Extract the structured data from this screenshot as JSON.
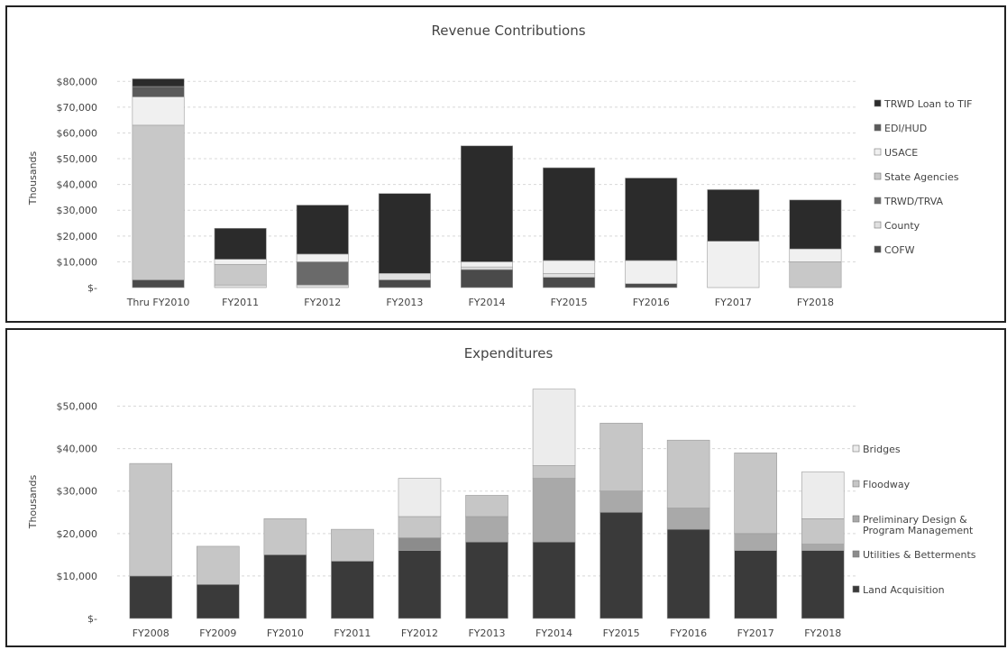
{
  "chart_data": [
    {
      "type": "bar",
      "stacked": true,
      "title": "Revenue Contributions",
      "ylabel": "Thousands",
      "ylim": [
        0,
        85000
      ],
      "yticks": [
        0,
        10000,
        20000,
        30000,
        40000,
        50000,
        60000,
        70000,
        80000
      ],
      "ytick_labels": [
        "$-",
        "$10,000",
        "$20,000",
        "$30,000",
        "$40,000",
        "$50,000",
        "$60,000",
        "$70,000",
        "$80,000"
      ],
      "grid": true,
      "legend_position": "right",
      "categories": [
        "Thru FY2010",
        "FY2011",
        "FY2012",
        "FY2013",
        "FY2014",
        "FY2015",
        "FY2016",
        "FY2017",
        "FY2018"
      ],
      "series": [
        {
          "name": "COFW",
          "color": "#4a4a4a",
          "values": [
            3000,
            0,
            0,
            3000,
            7000,
            4000,
            1500,
            0,
            0
          ]
        },
        {
          "name": "County",
          "color": "#e0e0e0",
          "values": [
            0,
            1000,
            1000,
            2500,
            1000,
            1500,
            0,
            0,
            0
          ]
        },
        {
          "name": "TRWD/TRVA",
          "color": "#6a6a6a",
          "values": [
            0,
            0,
            9000,
            0,
            0,
            0,
            0,
            0,
            0
          ]
        },
        {
          "name": "State Agencies",
          "color": "#c8c8c8",
          "values": [
            60000,
            8000,
            0,
            0,
            0,
            0,
            0,
            0,
            10000
          ]
        },
        {
          "name": "USACE",
          "color": "#f0f0f0",
          "values": [
            11000,
            2000,
            3000,
            0,
            2000,
            5000,
            9000,
            18000,
            5000
          ]
        },
        {
          "name": "EDI/HUD",
          "color": "#5a5a5a",
          "values": [
            4000,
            0,
            0,
            0,
            0,
            0,
            0,
            0,
            0
          ]
        },
        {
          "name": "TRWD Loan to TIF",
          "color": "#2b2b2b",
          "values": [
            3000,
            12000,
            19000,
            31000,
            45000,
            36000,
            32000,
            20000,
            19000
          ]
        }
      ]
    },
    {
      "type": "bar",
      "stacked": true,
      "title": "Expenditures",
      "ylabel": "Thousands",
      "ylim": [
        0,
        55000
      ],
      "yticks": [
        0,
        10000,
        20000,
        30000,
        40000,
        50000
      ],
      "ytick_labels": [
        "$-",
        "$10,000",
        "$20,000",
        "$30,000",
        "$40,000",
        "$50,000"
      ],
      "grid": true,
      "legend_position": "right",
      "categories": [
        "FY2008",
        "FY2009",
        "FY2010",
        "FY2011",
        "FY2012",
        "FY2013",
        "FY2014",
        "FY2015",
        "FY2016",
        "FY2017",
        "FY2018"
      ],
      "series": [
        {
          "name": "Land Acquisition",
          "color": "#3a3a3a",
          "values": [
            10000,
            8000,
            15000,
            13500,
            16000,
            18000,
            18000,
            25000,
            21000,
            16000,
            16000
          ]
        },
        {
          "name": "Utilities & Betterments",
          "color": "#8c8c8c",
          "values": [
            0,
            0,
            0,
            0,
            3000,
            0,
            0,
            0,
            0,
            0,
            0
          ]
        },
        {
          "name": "Preliminary Design & Program Management",
          "color": "#a9a9a9",
          "values": [
            0,
            0,
            0,
            0,
            0,
            6000,
            15000,
            5000,
            5000,
            4000,
            1500
          ]
        },
        {
          "name": "Floodway",
          "color": "#c6c6c6",
          "values": [
            26500,
            9000,
            8500,
            7500,
            5000,
            5000,
            3000,
            16000,
            16000,
            19000,
            6000
          ]
        },
        {
          "name": "Bridges",
          "color": "#ececec",
          "values": [
            0,
            0,
            0,
            0,
            9000,
            0,
            18000,
            0,
            0,
            0,
            11000
          ]
        }
      ]
    }
  ]
}
